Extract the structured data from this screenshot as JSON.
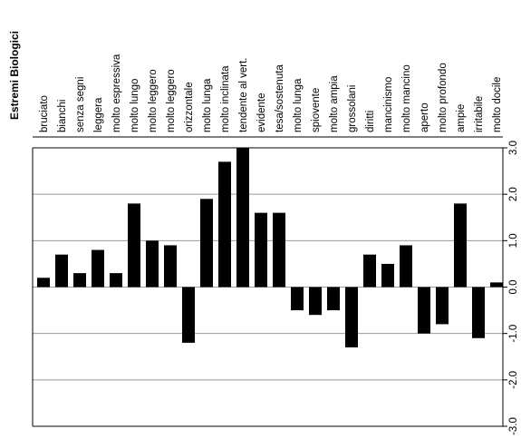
{
  "chart_data": {
    "type": "bar",
    "title": "Estremi Biologici",
    "categories": [
      "bruciato",
      "bianchi",
      "senza segni",
      "leggera",
      "molto espressiva",
      "molto lungo",
      "molto leggero",
      "molto leggero",
      "orizzontale",
      "molto lunga",
      "molto inclinata",
      "tendente al vert.",
      "evidente",
      "tesa/sostenuta",
      "molto lunga",
      "spiovente",
      "molto ampia",
      "grossolani",
      "diritti",
      "mancinismo",
      "molto mancino",
      "aperto",
      "molto profondo",
      "ampie",
      "irritabile",
      "molto docile"
    ],
    "values": [
      0.2,
      0.7,
      0.3,
      0.8,
      0.3,
      1.8,
      1.0,
      0.9,
      -1.2,
      1.9,
      2.7,
      3.0,
      1.6,
      1.6,
      -0.5,
      -0.6,
      -0.5,
      -1.3,
      0.7,
      0.5,
      0.9,
      -1.0,
      -0.8,
      1.8,
      -1.1,
      0.1
    ],
    "ylim": [
      -3.0,
      3.0
    ],
    "ticks": [
      "3.0",
      "2.0",
      "1.0",
      "0.0",
      "-1.0",
      "-2.0",
      "-3.0"
    ],
    "grid": true,
    "bar_color": "#000000",
    "grid_color": "#999999"
  }
}
